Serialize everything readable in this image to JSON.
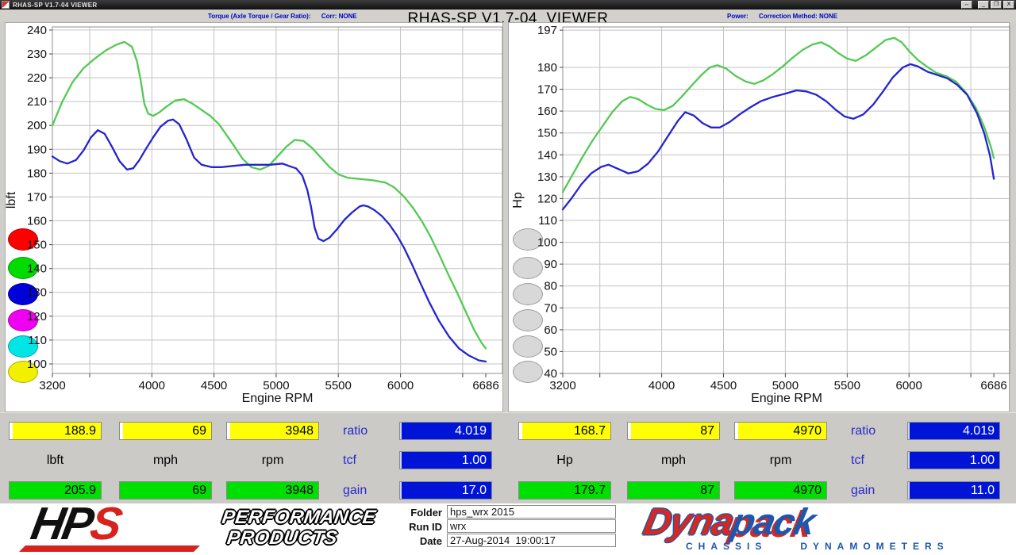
{
  "window": {
    "titlebar_text": "RHAS-SP V1.7-04  VIEWER",
    "big_title": "RHAS-SP V1.7-04  VIEWER",
    "buttons": [
      "↔",
      "_",
      "❐",
      "X"
    ]
  },
  "header": {
    "torque_info": "Torque (Axle Torque / Gear Ratio):      Corr: NONE",
    "power_info": "Power:      Correction Method: NONE"
  },
  "chart_data": [
    {
      "id": "torque",
      "type": "line",
      "xlabel": "Engine RPM",
      "ylabel": "lbft",
      "xlim": [
        3200,
        6820
      ],
      "ylim": [
        96,
        241.3
      ],
      "x_ticks": [
        3200,
        4000,
        4500,
        5000,
        5500,
        6000,
        6686
      ],
      "grid_x": [
        3500,
        4000,
        4500,
        5000,
        5500,
        6000,
        6500
      ],
      "y_ticks": [
        240,
        230,
        220,
        210,
        200,
        190,
        180,
        170,
        160,
        150,
        140,
        130,
        120,
        110,
        100
      ],
      "grid_on": true,
      "series": [
        {
          "name": "torque-green-run",
          "color": "#53c953",
          "points": [
            [
              3200,
              200
            ],
            [
              3280,
              210
            ],
            [
              3360,
              218
            ],
            [
              3450,
              224
            ],
            [
              3540,
              228
            ],
            [
              3630,
              231.5
            ],
            [
              3720,
              234
            ],
            [
              3780,
              235
            ],
            [
              3840,
              233
            ],
            [
              3880,
              227
            ],
            [
              3910,
              219
            ],
            [
              3940,
              209
            ],
            [
              3970,
              205
            ],
            [
              4010,
              204
            ],
            [
              4060,
              205.5
            ],
            [
              4120,
              208
            ],
            [
              4190,
              210.5
            ],
            [
              4260,
              211
            ],
            [
              4330,
              209
            ],
            [
              4400,
              206.5
            ],
            [
              4470,
              204
            ],
            [
              4540,
              200.5
            ],
            [
              4600,
              196
            ],
            [
              4660,
              191.5
            ],
            [
              4730,
              186
            ],
            [
              4800,
              182.5
            ],
            [
              4870,
              181.5
            ],
            [
              4940,
              183
            ],
            [
              5010,
              187
            ],
            [
              5080,
              191
            ],
            [
              5150,
              194
            ],
            [
              5220,
              193.5
            ],
            [
              5290,
              190.5
            ],
            [
              5360,
              186.5
            ],
            [
              5430,
              182.5
            ],
            [
              5500,
              179.5
            ],
            [
              5580,
              178
            ],
            [
              5680,
              177.5
            ],
            [
              5780,
              177
            ],
            [
              5880,
              176
            ],
            [
              5950,
              174
            ],
            [
              6030,
              170
            ],
            [
              6100,
              165.5
            ],
            [
              6170,
              160
            ],
            [
              6240,
              153.5
            ],
            [
              6310,
              146
            ],
            [
              6380,
              138
            ],
            [
              6450,
              130.5
            ],
            [
              6520,
              122.5
            ],
            [
              6590,
              114.5
            ],
            [
              6650,
              109
            ],
            [
              6686,
              106.5
            ]
          ]
        },
        {
          "name": "torque-blue-run",
          "color": "#2424cf",
          "points": [
            [
              3200,
              187
            ],
            [
              3260,
              185
            ],
            [
              3320,
              184
            ],
            [
              3390,
              185.5
            ],
            [
              3450,
              189.5
            ],
            [
              3510,
              195
            ],
            [
              3565,
              198
            ],
            [
              3620,
              196.5
            ],
            [
              3680,
              191
            ],
            [
              3740,
              185
            ],
            [
              3800,
              181.5
            ],
            [
              3850,
              182
            ],
            [
              3900,
              185.5
            ],
            [
              3950,
              190
            ],
            [
              4010,
              195
            ],
            [
              4070,
              199.5
            ],
            [
              4130,
              202
            ],
            [
              4170,
              202.5
            ],
            [
              4220,
              200.5
            ],
            [
              4280,
              194
            ],
            [
              4340,
              186.5
            ],
            [
              4400,
              183.5
            ],
            [
              4480,
              182.5
            ],
            [
              4560,
              182.5
            ],
            [
              4650,
              183
            ],
            [
              4750,
              183.5
            ],
            [
              4850,
              183.5
            ],
            [
              4950,
              183.5
            ],
            [
              5050,
              184
            ],
            [
              5130,
              182.5
            ],
            [
              5160,
              182
            ],
            [
              5210,
              179
            ],
            [
              5250,
              173
            ],
            [
              5280,
              166
            ],
            [
              5310,
              157
            ],
            [
              5340,
              152.5
            ],
            [
              5380,
              151.5
            ],
            [
              5430,
              153
            ],
            [
              5490,
              156.5
            ],
            [
              5550,
              160.5
            ],
            [
              5610,
              163.5
            ],
            [
              5670,
              166
            ],
            [
              5700,
              166.5
            ],
            [
              5740,
              166
            ],
            [
              5790,
              164.5
            ],
            [
              5850,
              162
            ],
            [
              5910,
              158.5
            ],
            [
              5970,
              154
            ],
            [
              6030,
              148.5
            ],
            [
              6090,
              142
            ],
            [
              6150,
              135
            ],
            [
              6230,
              126
            ],
            [
              6310,
              118
            ],
            [
              6390,
              111.5
            ],
            [
              6470,
              106.5
            ],
            [
              6550,
              103.5
            ],
            [
              6630,
              101.5
            ],
            [
              6686,
              101
            ]
          ]
        }
      ]
    },
    {
      "id": "power",
      "type": "line",
      "xlabel": "Engine RPM",
      "ylabel": "Hp",
      "xlim": [
        3200,
        6820
      ],
      "ylim": [
        40,
        198.5
      ],
      "x_ticks": [
        3200,
        4000,
        4500,
        5000,
        5500,
        6000,
        6686
      ],
      "grid_x": [
        3500,
        4000,
        4500,
        5000,
        5500,
        6000,
        6500
      ],
      "y_ticks": [
        197,
        180,
        170,
        160,
        150,
        140,
        130,
        120,
        110,
        100,
        90,
        80,
        70,
        60,
        50,
        40
      ],
      "grid_on": true,
      "series": [
        {
          "name": "power-green-run",
          "color": "#53c953",
          "points": [
            [
              3200,
              123
            ],
            [
              3280,
              131
            ],
            [
              3360,
              139
            ],
            [
              3440,
              146.5
            ],
            [
              3520,
              153
            ],
            [
              3600,
              159.5
            ],
            [
              3680,
              164.5
            ],
            [
              3745,
              166.5
            ],
            [
              3810,
              165.5
            ],
            [
              3880,
              163
            ],
            [
              3950,
              161
            ],
            [
              4020,
              160.5
            ],
            [
              4090,
              162.5
            ],
            [
              4160,
              166.5
            ],
            [
              4240,
              171.5
            ],
            [
              4320,
              176.5
            ],
            [
              4390,
              180
            ],
            [
              4450,
              181
            ],
            [
              4520,
              179.5
            ],
            [
              4600,
              176
            ],
            [
              4680,
              173.5
            ],
            [
              4750,
              172.5
            ],
            [
              4820,
              174
            ],
            [
              4900,
              177
            ],
            [
              4980,
              180.5
            ],
            [
              5060,
              184.5
            ],
            [
              5140,
              188
            ],
            [
              5220,
              190.5
            ],
            [
              5290,
              191.5
            ],
            [
              5360,
              189.5
            ],
            [
              5430,
              186.5
            ],
            [
              5500,
              184
            ],
            [
              5570,
              183
            ],
            [
              5650,
              185.5
            ],
            [
              5730,
              189
            ],
            [
              5810,
              192.5
            ],
            [
              5880,
              193.5
            ],
            [
              5940,
              191.5
            ],
            [
              6000,
              187.5
            ],
            [
              6070,
              183.5
            ],
            [
              6140,
              180.5
            ],
            [
              6220,
              177.5
            ],
            [
              6300,
              176
            ],
            [
              6380,
              173.5
            ],
            [
              6460,
              168.5
            ],
            [
              6540,
              161.5
            ],
            [
              6610,
              152.5
            ],
            [
              6660,
              144
            ],
            [
              6686,
              138.5
            ]
          ]
        },
        {
          "name": "power-blue-run",
          "color": "#2424cf",
          "points": [
            [
              3200,
              115
            ],
            [
              3270,
              120
            ],
            [
              3350,
              126.5
            ],
            [
              3430,
              131.5
            ],
            [
              3510,
              134.5
            ],
            [
              3570,
              135.5
            ],
            [
              3650,
              133.5
            ],
            [
              3730,
              131.5
            ],
            [
              3810,
              132.5
            ],
            [
              3890,
              136
            ],
            [
              3970,
              141.5
            ],
            [
              4050,
              148.5
            ],
            [
              4130,
              155.5
            ],
            [
              4190,
              159.5
            ],
            [
              4260,
              158
            ],
            [
              4330,
              154.5
            ],
            [
              4400,
              152.5
            ],
            [
              4470,
              152.5
            ],
            [
              4550,
              155
            ],
            [
              4630,
              158.5
            ],
            [
              4710,
              161.5
            ],
            [
              4800,
              164.5
            ],
            [
              4900,
              166.5
            ],
            [
              5000,
              168
            ],
            [
              5090,
              169.5
            ],
            [
              5170,
              169
            ],
            [
              5250,
              167.5
            ],
            [
              5330,
              164.5
            ],
            [
              5410,
              160.5
            ],
            [
              5480,
              157.5
            ],
            [
              5550,
              156.5
            ],
            [
              5630,
              158.5
            ],
            [
              5710,
              163
            ],
            [
              5790,
              169
            ],
            [
              5870,
              175.5
            ],
            [
              5950,
              180
            ],
            [
              6010,
              181.5
            ],
            [
              6070,
              180.5
            ],
            [
              6150,
              178
            ],
            [
              6230,
              176.5
            ],
            [
              6310,
              175
            ],
            [
              6390,
              172
            ],
            [
              6470,
              167.5
            ],
            [
              6550,
              159
            ],
            [
              6610,
              149.5
            ],
            [
              6655,
              139.5
            ],
            [
              6686,
              129
            ]
          ]
        }
      ]
    }
  ],
  "legend_buttons": {
    "left": [
      {
        "name": "red",
        "color": "#ff0000"
      },
      {
        "name": "green",
        "color": "#00dc00"
      },
      {
        "name": "blue",
        "color": "#0000d8"
      },
      {
        "name": "magenta",
        "color": "#f000f0"
      },
      {
        "name": "cyan",
        "color": "#00e6e6"
      },
      {
        "name": "yellow",
        "color": "#f0f000"
      }
    ],
    "right": [
      {
        "name": "gray-1",
        "color": "#d8d8d8"
      },
      {
        "name": "gray-2",
        "color": "#d8d8d8"
      },
      {
        "name": "gray-3",
        "color": "#d8d8d8"
      },
      {
        "name": "gray-4",
        "color": "#d8d8d8"
      },
      {
        "name": "gray-5",
        "color": "#d8d8d8"
      },
      {
        "name": "gray-6",
        "color": "#d8d8d8"
      }
    ]
  },
  "panels": {
    "left": {
      "yellow": [
        "188.9",
        "69",
        "3948"
      ],
      "units": [
        "lbft",
        "mph",
        "rpm"
      ],
      "green": [
        "205.9",
        "69",
        "3948"
      ],
      "stats": [
        {
          "label": "ratio",
          "value": "4.019"
        },
        {
          "label": "tcf",
          "value": "1.00"
        },
        {
          "label": "gain",
          "value": "17.0"
        }
      ]
    },
    "right": {
      "yellow": [
        "168.7",
        "87",
        "4970"
      ],
      "units": [
        "Hp",
        "mph",
        "rpm"
      ],
      "green": [
        "179.7",
        "87",
        "4970"
      ],
      "stats": [
        {
          "label": "ratio",
          "value": "4.019"
        },
        {
          "label": "tcf",
          "value": "1.00"
        },
        {
          "label": "gain",
          "value": "11.0"
        }
      ]
    }
  },
  "footer": {
    "fields": [
      {
        "label": "Folder",
        "value": "hps_wrx 2015"
      },
      {
        "label": "Run ID",
        "value": "wrx"
      },
      {
        "label": "Date",
        "value": "27-Aug-2014  19:00:17"
      }
    ]
  },
  "logos": {
    "hps": {
      "hp": "HP",
      "s": "S",
      "line1": "PERFORMANCE",
      "line2": "PRODUCTS"
    },
    "dynapack": {
      "p1": "Dyna",
      "p2": "pack",
      "sub1": "CHASSIS",
      "sub2": "DYNAMOMETERS"
    }
  }
}
